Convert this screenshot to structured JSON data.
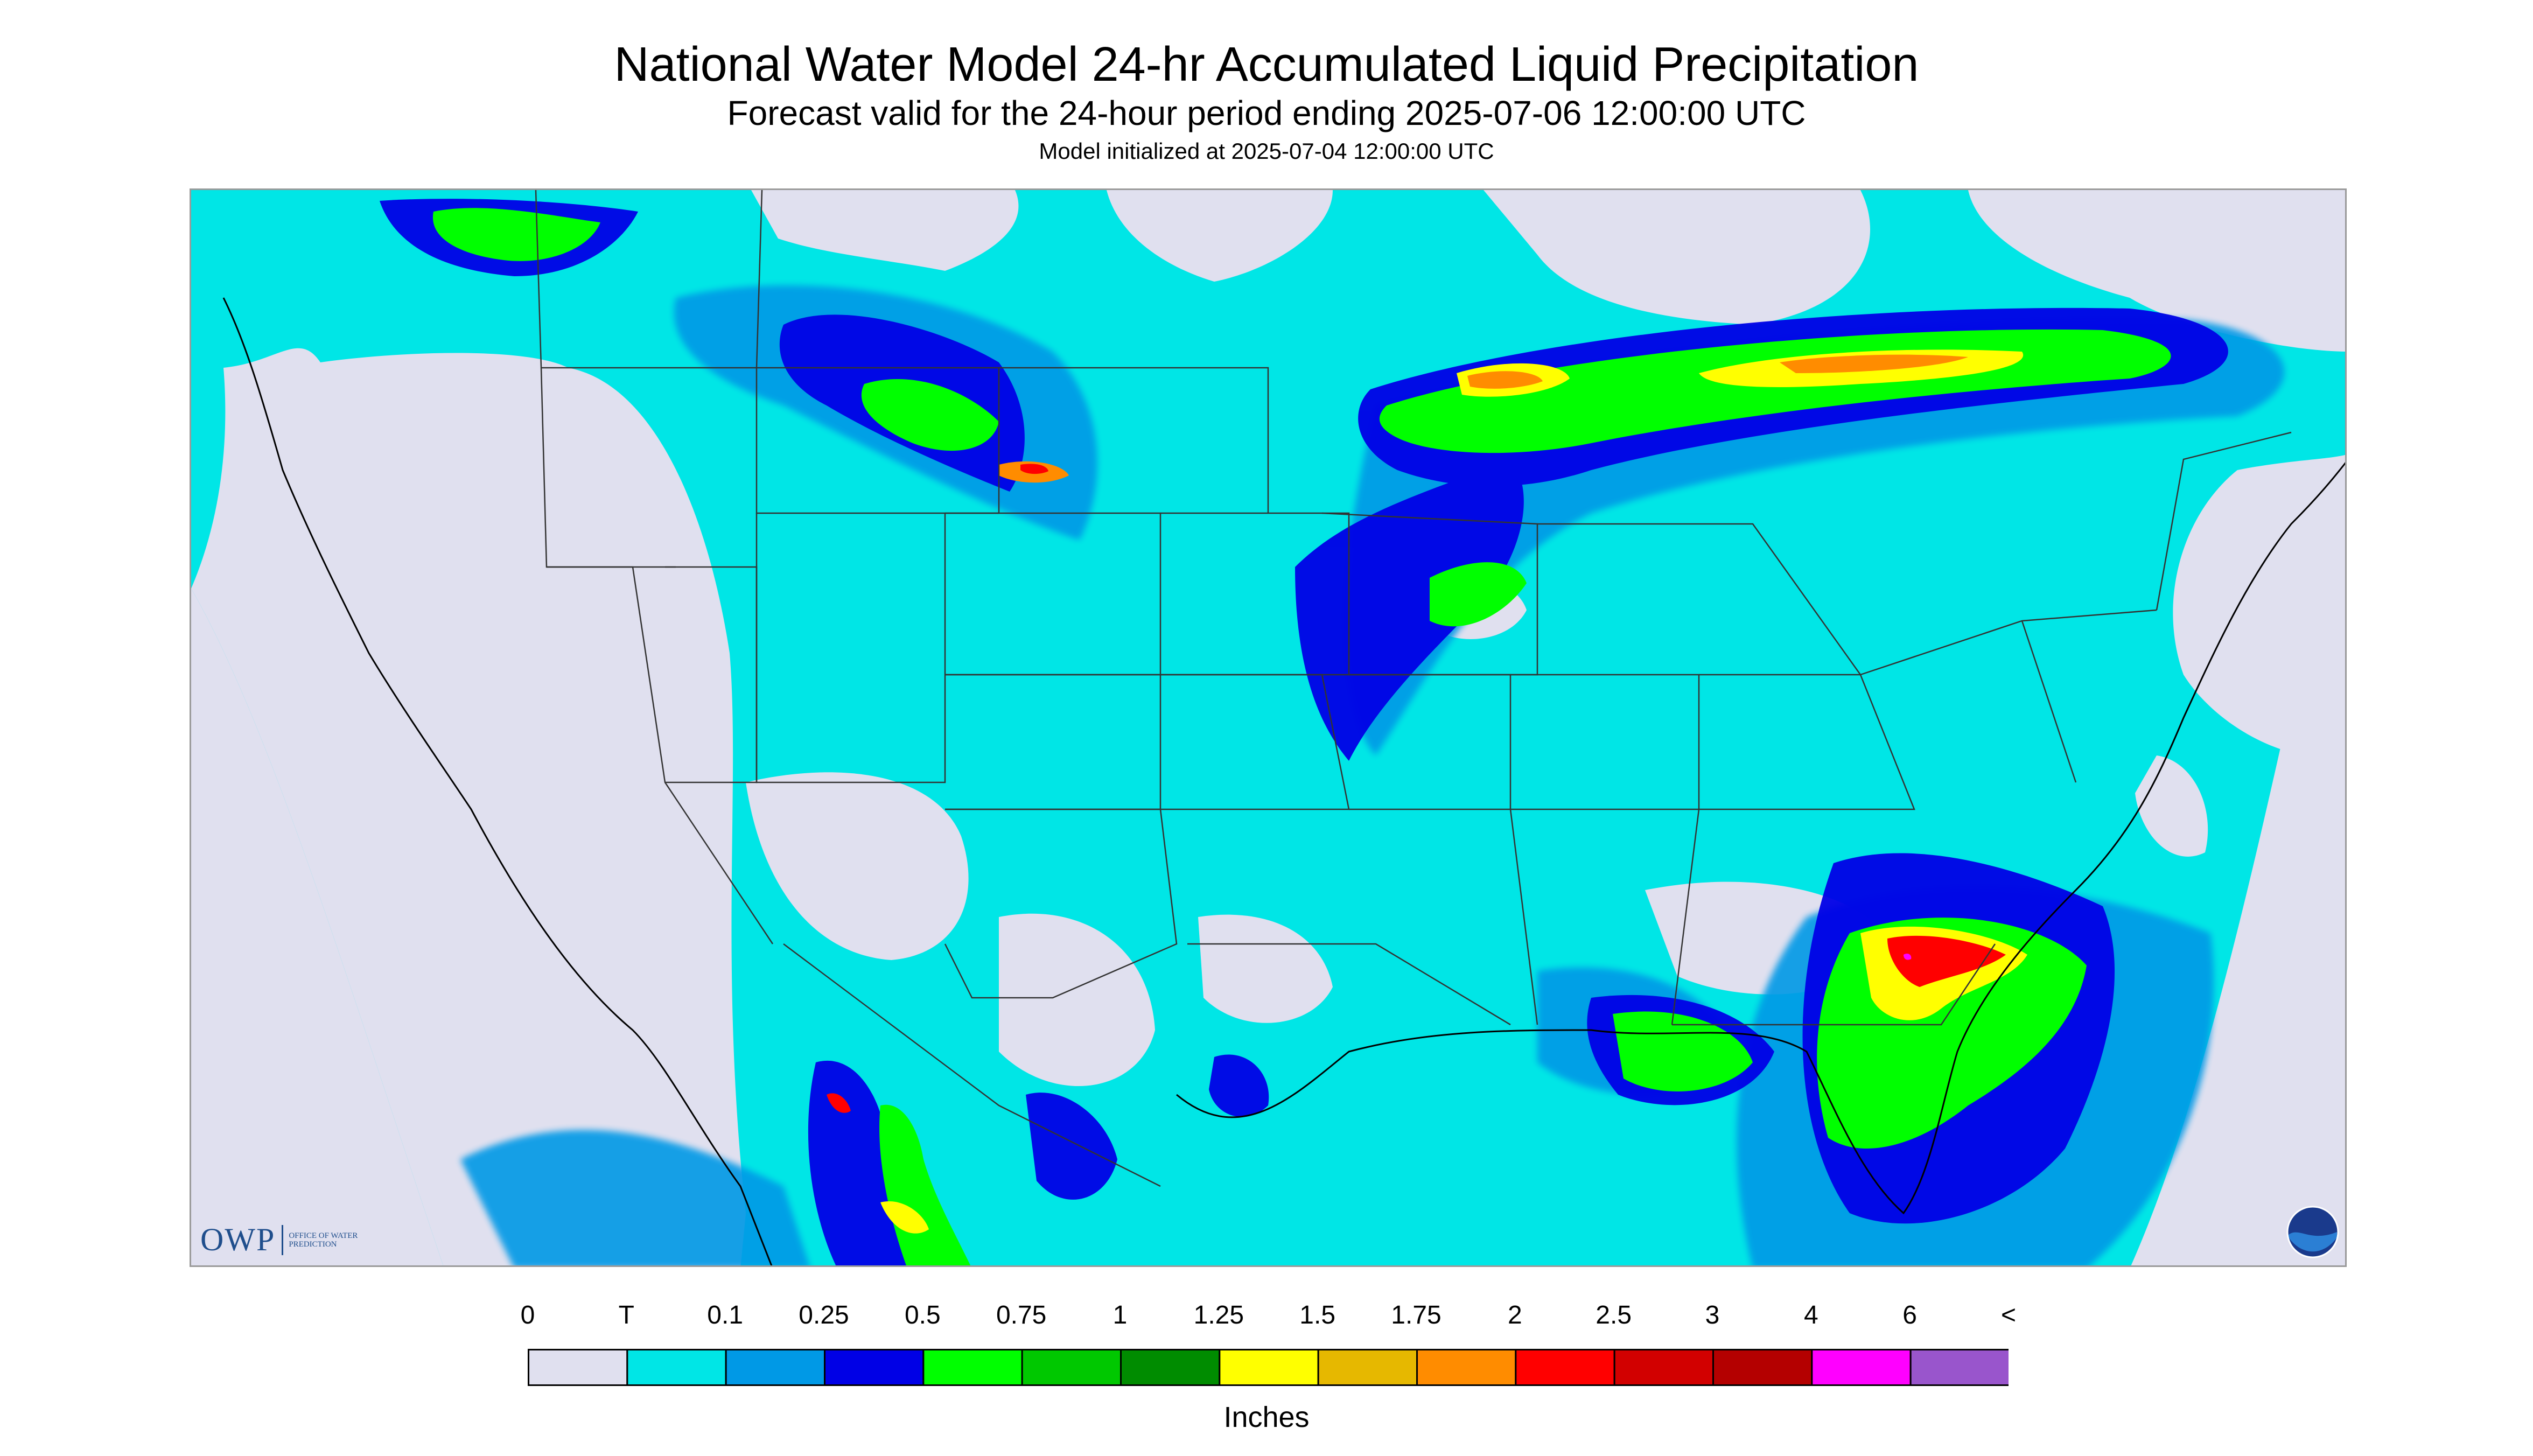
{
  "header": {
    "title": "National Water Model 24-hr Accumulated Liquid Precipitation",
    "subtitle": "Forecast valid for the 24-hour period ending 2025-07-06 12:00:00 UTC",
    "init": "Model initialized at 2025-07-04 12:00:00 UTC"
  },
  "logos": {
    "owp_mark": "OWP",
    "owp_text": "Office of Water Prediction",
    "noaa_text": "NOAA"
  },
  "legend": {
    "labels": [
      "0",
      "T",
      "0.1",
      "0.25",
      "0.5",
      "0.75",
      "1",
      "1.25",
      "1.5",
      "1.75",
      "2",
      "2.5",
      "3",
      "4",
      "6",
      "<"
    ],
    "colors": [
      "#e0e0ef",
      "#00e6e6",
      "#0099e6",
      "#0000e6",
      "#00ff00",
      "#00c800",
      "#008c00",
      "#ffff00",
      "#e6b800",
      "#ff8c00",
      "#ff0000",
      "#d20000",
      "#b40000",
      "#ff00ff",
      "#9955cc"
    ],
    "units": "Inches"
  },
  "map": {
    "projection": "CONUS Lambert Conformal",
    "precip_colors": {
      "trace": "#00e6e6",
      "light": "#0099e6",
      "moderate": "#0000e6",
      "green": "#00ff00",
      "green2": "#00c800",
      "yellow": "#ffff00",
      "orange": "#ff8c00",
      "red": "#ff0000",
      "darkred": "#b40000",
      "magenta": "#ff00ff",
      "none": "#e0e0ef"
    }
  }
}
